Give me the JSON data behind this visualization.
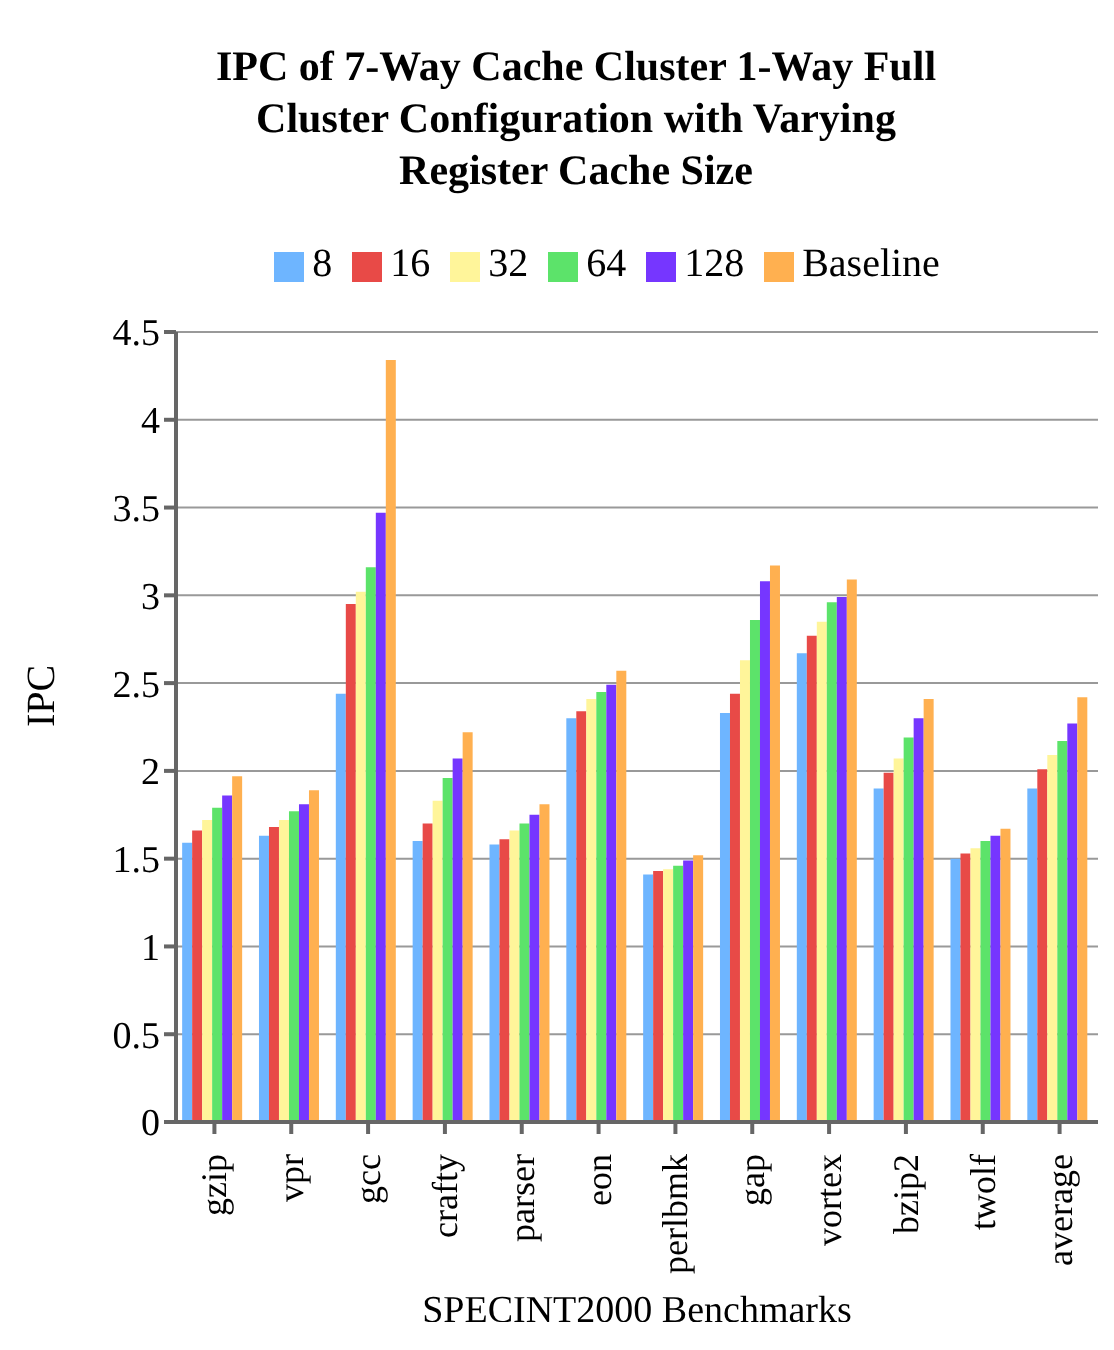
{
  "chart_data": {
    "type": "bar",
    "title": "IPC of 7-Way Cache Cluster 1-Way Full Cluster Configuration with Varying Register Cache Size",
    "xlabel": "SPECINT2000 Benchmarks",
    "ylabel": "IPC",
    "categories": [
      "gzip",
      "vpr",
      "gcc",
      "crafty",
      "parser",
      "eon",
      "perlbmk",
      "gap",
      "vortex",
      "bzip2",
      "twolf",
      "average"
    ],
    "series": [
      {
        "name": "8",
        "color": "#6eb5ff",
        "values": [
          1.59,
          1.63,
          2.44,
          1.6,
          1.58,
          2.3,
          1.41,
          2.33,
          2.67,
          1.9,
          1.5,
          1.9
        ]
      },
      {
        "name": "16",
        "color": "#e84a47",
        "values": [
          1.66,
          1.68,
          2.95,
          1.7,
          1.61,
          2.34,
          1.43,
          2.44,
          2.77,
          1.99,
          1.53,
          2.01
        ]
      },
      {
        "name": "32",
        "color": "#fff59a",
        "values": [
          1.72,
          1.72,
          3.02,
          1.83,
          1.66,
          2.41,
          1.44,
          2.63,
          2.85,
          2.07,
          1.56,
          2.09
        ]
      },
      {
        "name": "64",
        "color": "#5ce36a",
        "values": [
          1.79,
          1.77,
          3.16,
          1.96,
          1.7,
          2.45,
          1.46,
          2.86,
          2.96,
          2.19,
          1.6,
          2.17
        ]
      },
      {
        "name": "128",
        "color": "#7636ff",
        "values": [
          1.86,
          1.81,
          3.47,
          2.07,
          1.75,
          2.49,
          1.49,
          3.08,
          2.99,
          2.3,
          1.63,
          2.27
        ]
      },
      {
        "name": "Baseline",
        "color": "#ffb050",
        "values": [
          1.97,
          1.89,
          4.34,
          2.22,
          1.81,
          2.57,
          1.52,
          3.17,
          3.09,
          2.41,
          1.67,
          2.42
        ]
      }
    ],
    "ylim": [
      0,
      4.5
    ],
    "yticks": [
      0,
      0.5,
      1,
      1.5,
      2,
      2.5,
      3,
      3.5,
      4,
      4.5
    ],
    "grid": "y",
    "legend": "top"
  }
}
